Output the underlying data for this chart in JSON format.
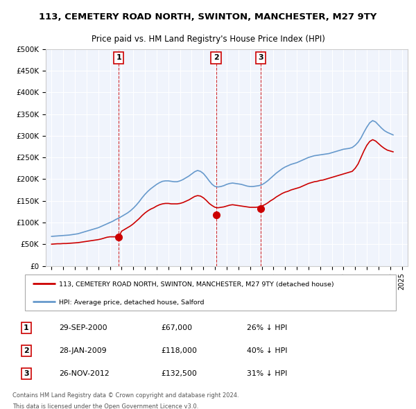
{
  "title": "113, CEMETERY ROAD NORTH, SWINTON, MANCHESTER, M27 9TY",
  "subtitle": "Price paid vs. HM Land Registry's House Price Index (HPI)",
  "legend_line1": "113, CEMETERY ROAD NORTH, SWINTON, MANCHESTER, M27 9TY (detached house)",
  "legend_line2": "HPI: Average price, detached house, Salford",
  "sales": [
    {
      "label": "1",
      "date": "29-SEP-2000",
      "price": 67000,
      "year": 2000.75,
      "pct": "26%",
      "dir": "↓"
    },
    {
      "label": "2",
      "date": "28-JAN-2009",
      "price": 118000,
      "year": 2009.08,
      "pct": "40%",
      "dir": "↓"
    },
    {
      "label": "3",
      "date": "26-NOV-2012",
      "price": 132500,
      "year": 2012.9,
      "pct": "31%",
      "dir": "↓"
    }
  ],
  "table_rows": [
    [
      "1",
      "29-SEP-2000",
      "£67,000",
      "26% ↓ HPI"
    ],
    [
      "2",
      "28-JAN-2009",
      "£118,000",
      "40% ↓ HPI"
    ],
    [
      "3",
      "26-NOV-2012",
      "£132,500",
      "31% ↓ HPI"
    ]
  ],
  "footer1": "Contains HM Land Registry data © Crown copyright and database right 2024.",
  "footer2": "This data is licensed under the Open Government Licence v3.0.",
  "ylim": [
    0,
    500000
  ],
  "yticks": [
    0,
    50000,
    100000,
    150000,
    200000,
    250000,
    300000,
    350000,
    400000,
    450000,
    500000
  ],
  "xlim": [
    1994.5,
    2025.5
  ],
  "background_color": "#e8eef8",
  "plot_bg": "#f0f4fc",
  "red_color": "#cc0000",
  "blue_color": "#6699cc",
  "hpi_data": {
    "years": [
      1995,
      1995.25,
      1995.5,
      1995.75,
      1996,
      1996.25,
      1996.5,
      1996.75,
      1997,
      1997.25,
      1997.5,
      1997.75,
      1998,
      1998.25,
      1998.5,
      1998.75,
      1999,
      1999.25,
      1999.5,
      1999.75,
      2000,
      2000.25,
      2000.5,
      2000.75,
      2001,
      2001.25,
      2001.5,
      2001.75,
      2002,
      2002.25,
      2002.5,
      2002.75,
      2003,
      2003.25,
      2003.5,
      2003.75,
      2004,
      2004.25,
      2004.5,
      2004.75,
      2005,
      2005.25,
      2005.5,
      2005.75,
      2006,
      2006.25,
      2006.5,
      2006.75,
      2007,
      2007.25,
      2007.5,
      2007.75,
      2008,
      2008.25,
      2008.5,
      2008.75,
      2009,
      2009.25,
      2009.5,
      2009.75,
      2010,
      2010.25,
      2010.5,
      2010.75,
      2011,
      2011.25,
      2011.5,
      2011.75,
      2012,
      2012.25,
      2012.5,
      2012.75,
      2013,
      2013.25,
      2013.5,
      2013.75,
      2014,
      2014.25,
      2014.5,
      2014.75,
      2015,
      2015.25,
      2015.5,
      2015.75,
      2016,
      2016.25,
      2016.5,
      2016.75,
      2017,
      2017.25,
      2017.5,
      2017.75,
      2018,
      2018.25,
      2018.5,
      2018.75,
      2019,
      2019.25,
      2019.5,
      2019.75,
      2020,
      2020.25,
      2020.5,
      2020.75,
      2021,
      2021.25,
      2021.5,
      2021.75,
      2022,
      2022.25,
      2022.5,
      2022.75,
      2023,
      2023.25,
      2023.5,
      2023.75,
      2024,
      2024.25
    ],
    "values": [
      68000,
      68500,
      69000,
      69500,
      70000,
      70500,
      71000,
      72000,
      73000,
      74000,
      76000,
      78000,
      80000,
      82000,
      84000,
      86000,
      88000,
      91000,
      94000,
      97000,
      100000,
      103000,
      107000,
      110000,
      114000,
      118000,
      122000,
      127000,
      133000,
      140000,
      148000,
      157000,
      165000,
      172000,
      178000,
      183000,
      188000,
      192000,
      195000,
      196000,
      196000,
      195000,
      194000,
      194000,
      196000,
      199000,
      203000,
      207000,
      212000,
      217000,
      220000,
      218000,
      213000,
      205000,
      196000,
      188000,
      183000,
      182000,
      183000,
      185000,
      188000,
      190000,
      191000,
      190000,
      189000,
      188000,
      186000,
      184000,
      183000,
      183000,
      184000,
      185000,
      187000,
      191000,
      196000,
      202000,
      208000,
      214000,
      219000,
      224000,
      228000,
      231000,
      234000,
      236000,
      238000,
      241000,
      244000,
      247000,
      250000,
      252000,
      254000,
      255000,
      256000,
      257000,
      258000,
      259000,
      261000,
      263000,
      265000,
      267000,
      269000,
      270000,
      271000,
      273000,
      278000,
      285000,
      295000,
      308000,
      320000,
      330000,
      335000,
      332000,
      325000,
      318000,
      312000,
      308000,
      305000,
      302000
    ]
  },
  "price_data": {
    "years": [
      1995,
      1995.25,
      1995.5,
      1995.75,
      1996,
      1996.25,
      1996.5,
      1996.75,
      1997,
      1997.25,
      1997.5,
      1997.75,
      1998,
      1998.25,
      1998.5,
      1998.75,
      1999,
      1999.25,
      1999.5,
      1999.75,
      2000,
      2000.25,
      2000.5,
      2000.75,
      2001,
      2001.25,
      2001.5,
      2001.75,
      2002,
      2002.25,
      2002.5,
      2002.75,
      2003,
      2003.25,
      2003.5,
      2003.75,
      2004,
      2004.25,
      2004.5,
      2004.75,
      2005,
      2005.25,
      2005.5,
      2005.75,
      2006,
      2006.25,
      2006.5,
      2006.75,
      2007,
      2007.25,
      2007.5,
      2007.75,
      2008,
      2008.25,
      2008.5,
      2008.75,
      2009,
      2009.25,
      2009.5,
      2009.75,
      2010,
      2010.25,
      2010.5,
      2010.75,
      2011,
      2011.25,
      2011.5,
      2011.75,
      2012,
      2012.25,
      2012.5,
      2012.75,
      2013,
      2013.25,
      2013.5,
      2013.75,
      2014,
      2014.25,
      2014.5,
      2014.75,
      2015,
      2015.25,
      2015.5,
      2015.75,
      2016,
      2016.25,
      2016.5,
      2016.75,
      2017,
      2017.25,
      2017.5,
      2017.75,
      2018,
      2018.25,
      2018.5,
      2018.75,
      2019,
      2019.25,
      2019.5,
      2019.75,
      2020,
      2020.25,
      2020.5,
      2020.75,
      2021,
      2021.25,
      2021.5,
      2021.75,
      2022,
      2022.25,
      2022.5,
      2022.75,
      2023,
      2023.25,
      2023.5,
      2023.75,
      2024,
      2024.25
    ],
    "values": [
      50000,
      50500,
      51000,
      51000,
      51500,
      51500,
      52000,
      52500,
      53000,
      53500,
      54500,
      55500,
      56500,
      57500,
      58500,
      59500,
      60500,
      62000,
      64000,
      66000,
      67000,
      67000,
      67000,
      67000,
      80000,
      84000,
      88000,
      92000,
      97000,
      103000,
      109000,
      116000,
      122000,
      127000,
      131000,
      134000,
      138000,
      141000,
      143000,
      144000,
      144000,
      143000,
      143000,
      143000,
      144000,
      146000,
      149000,
      152000,
      156000,
      160000,
      162000,
      161000,
      157000,
      151000,
      144000,
      139000,
      135000,
      134000,
      135000,
      136000,
      138000,
      140000,
      141000,
      140000,
      139000,
      138000,
      137000,
      136000,
      135000,
      135000,
      135000,
      136000,
      138000,
      141000,
      145000,
      150000,
      154000,
      159000,
      163000,
      167000,
      170000,
      172000,
      175000,
      177000,
      179000,
      181000,
      184000,
      187000,
      190000,
      192000,
      194000,
      195000,
      197000,
      198000,
      200000,
      202000,
      204000,
      206000,
      208000,
      210000,
      212000,
      214000,
      216000,
      218000,
      225000,
      235000,
      250000,
      265000,
      278000,
      287000,
      291000,
      288000,
      282000,
      276000,
      271000,
      267000,
      265000,
      263000
    ]
  }
}
